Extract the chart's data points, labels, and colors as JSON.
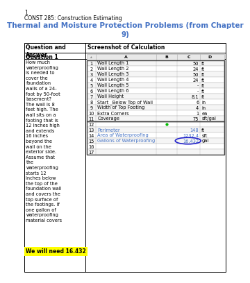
{
  "page_number": "1",
  "course": "CONST 285: Construction Estimating",
  "title": "Thermal and Moisture Protection Problems (from Chapter\n9)",
  "title_color": "#4472C4",
  "table_header_left": "Question and\nAnswer",
  "table_header_right": "Screenshot of Calculation",
  "question_label": "Question 1",
  "question_text": "How much\nwaterproofing\nis needed to\ncover the\nfoundation\nwalls of a 24-\nfoot by 50-foot\nbasement?\nThe wall is 8\nfeet high. The\nwall sits on a\nfooting that is\n12 inches high\nand extends\n16 inches\nbeyond the\nwall on the\nexterior side.\nAssume that\nthe\nwaterproofing\nstarts 12\ninches below\nthe top of the\nfoundation wall\nand covers the\ntop surface of\nthe footings. If\none gallon of\nwaterproofing\nmaterial covers",
  "spreadsheet_rows": [
    [
      "1",
      "Wall Length 1",
      "50",
      "ft"
    ],
    [
      "2",
      "Wall Length 2",
      "24",
      "ft"
    ],
    [
      "3",
      "Wall Length 3",
      "50",
      "ft"
    ],
    [
      "4",
      "Wall Length 4",
      "24",
      "ft"
    ],
    [
      "5",
      "Wall Length 5",
      "-",
      "ft"
    ],
    [
      "6",
      "Wall Length 6",
      "-",
      "ft"
    ],
    [
      "7",
      "Wall Height",
      "8.1",
      "ft"
    ],
    [
      "8",
      "Start _Below Top of Wall",
      "6",
      "in"
    ],
    [
      "9",
      "Width of Top Footing",
      "4",
      "in"
    ],
    [
      "10",
      "Extra Corners",
      "1",
      "ea"
    ],
    [
      "11",
      "Coverage",
      "75",
      "sft/gal"
    ],
    [
      "12",
      "",
      "",
      ""
    ],
    [
      "13",
      "Perimeter",
      "148",
      "ft"
    ],
    [
      "14",
      "Area of Waterproofing",
      "1232.4",
      "sft"
    ],
    [
      "15",
      "Gallons of Waterproofing",
      "16.432",
      "gal"
    ],
    [
      "16",
      "",
      "",
      ""
    ],
    [
      "17",
      "",
      "",
      ""
    ]
  ],
  "highlight_answer": "We will need 16.432",
  "highlight_color": "#FFFF00",
  "circle_color": "#2222CC",
  "calc_text_color": "#4472C4",
  "green_dot_color": "#00BB00",
  "background_color": "#FFFFFF",
  "border_color": "#000000",
  "grid_color": "#AAAAAA",
  "font_size_title": 7.5,
  "font_size_course": 5.5,
  "font_size_page": 5.5,
  "font_size_header": 5.5,
  "font_size_question": 5.5,
  "font_size_ss": 4.8
}
